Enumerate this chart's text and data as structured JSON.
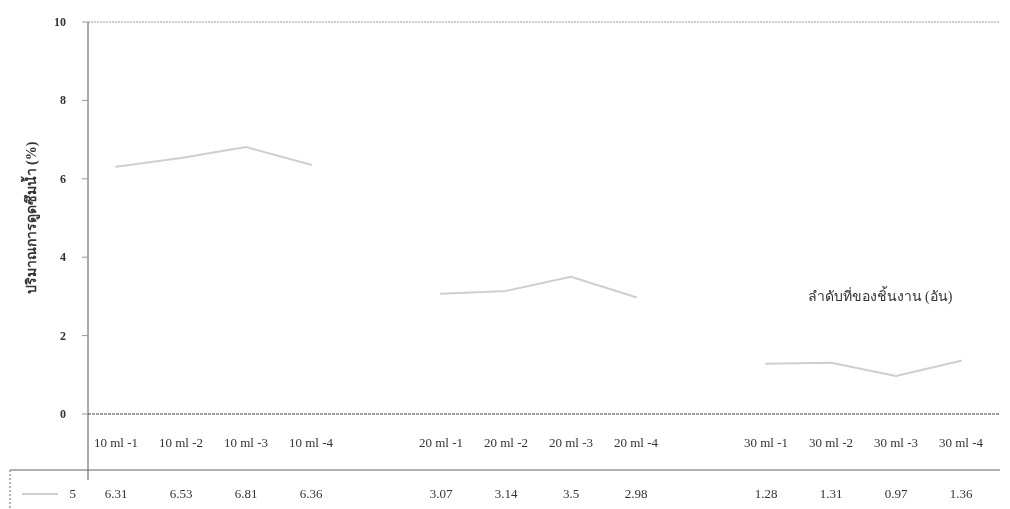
{
  "chart_data": {
    "type": "line",
    "ylabel": "ปริมาณการดูดซึมน้ำ (%)",
    "xlabel": "ลำดับที่ของชิ้นงาน (อัน)",
    "categories": [
      "10 ml -1",
      "10 ml -2",
      "10 ml -3",
      "10 ml -4",
      null,
      "20 ml -1",
      "20 ml -2",
      "20 ml -3",
      "20 ml -4",
      null,
      "30 ml -1",
      "30 ml -2",
      "30 ml -3",
      "30 ml -4"
    ],
    "series": [
      {
        "name": "5",
        "color": "#cfcfcf",
        "values": [
          6.31,
          6.53,
          6.81,
          6.36,
          null,
          3.07,
          3.14,
          3.5,
          2.98,
          null,
          1.28,
          1.31,
          0.97,
          1.36
        ]
      }
    ],
    "ylim": [
      0,
      10
    ],
    "yticks": [
      0,
      2,
      4,
      6,
      8,
      10
    ],
    "data_labels": true,
    "legend": "bottom",
    "grid": false
  }
}
